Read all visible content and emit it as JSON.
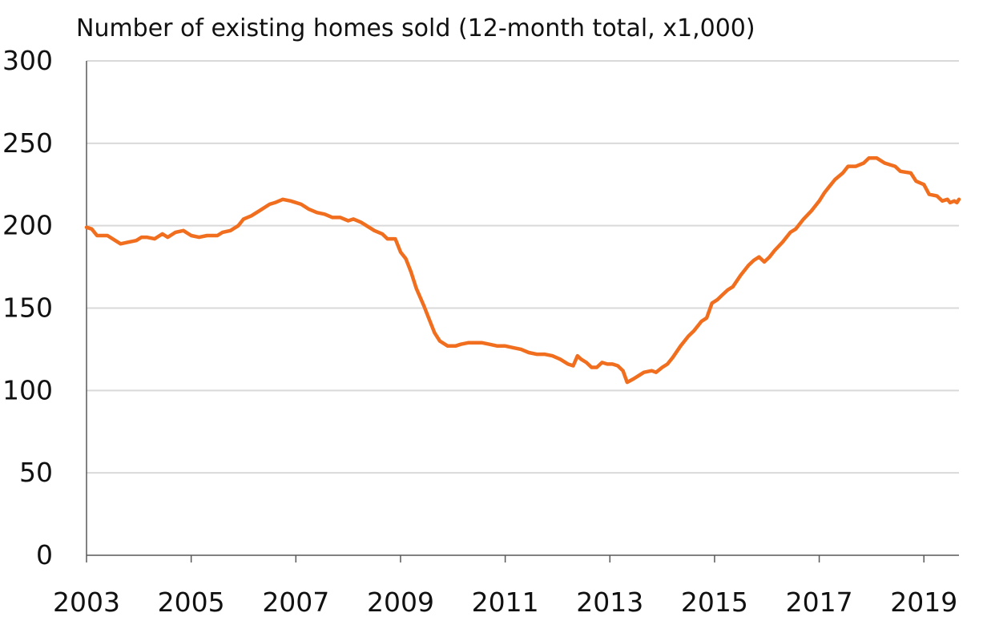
{
  "chart_data": {
    "type": "line",
    "title": "Number of existing homes sold (12-month total, x1,000)",
    "xlabel": "",
    "ylabel": "",
    "x_ticks": [
      "2003",
      "2005",
      "2007",
      "2009",
      "2011",
      "2013",
      "2015",
      "2017",
      "2019"
    ],
    "y_ticks": [
      "0",
      "50",
      "100",
      "150",
      "200",
      "250",
      "300"
    ],
    "xlim": [
      2003.0,
      2019.67
    ],
    "ylim": [
      0,
      300
    ],
    "grid": true,
    "color": "#f06e1e",
    "series": [
      {
        "name": "",
        "points": [
          [
            2003.0,
            199
          ],
          [
            2003.1,
            198
          ],
          [
            2003.2,
            194
          ],
          [
            2003.4,
            194
          ],
          [
            2003.55,
            191
          ],
          [
            2003.65,
            189
          ],
          [
            2003.8,
            190
          ],
          [
            2003.95,
            191
          ],
          [
            2004.05,
            193
          ],
          [
            2004.15,
            193
          ],
          [
            2004.3,
            192
          ],
          [
            2004.45,
            195
          ],
          [
            2004.55,
            193
          ],
          [
            2004.7,
            196
          ],
          [
            2004.85,
            197
          ],
          [
            2005.0,
            194
          ],
          [
            2005.15,
            193
          ],
          [
            2005.3,
            194
          ],
          [
            2005.5,
            194
          ],
          [
            2005.6,
            196
          ],
          [
            2005.75,
            197
          ],
          [
            2005.9,
            200
          ],
          [
            2006.0,
            204
          ],
          [
            2006.15,
            206
          ],
          [
            2006.3,
            209
          ],
          [
            2006.5,
            213
          ],
          [
            2006.6,
            214
          ],
          [
            2006.75,
            216
          ],
          [
            2006.9,
            215
          ],
          [
            2007.1,
            213
          ],
          [
            2007.25,
            210
          ],
          [
            2007.4,
            208
          ],
          [
            2007.55,
            207
          ],
          [
            2007.7,
            205
          ],
          [
            2007.85,
            205
          ],
          [
            2008.0,
            203
          ],
          [
            2008.1,
            204
          ],
          [
            2008.25,
            202
          ],
          [
            2008.35,
            200
          ],
          [
            2008.5,
            197
          ],
          [
            2008.65,
            195
          ],
          [
            2008.75,
            192
          ],
          [
            2008.9,
            192
          ],
          [
            2009.0,
            184
          ],
          [
            2009.1,
            180
          ],
          [
            2009.2,
            172
          ],
          [
            2009.3,
            162
          ],
          [
            2009.45,
            151
          ],
          [
            2009.55,
            143
          ],
          [
            2009.65,
            135
          ],
          [
            2009.75,
            130
          ],
          [
            2009.9,
            127
          ],
          [
            2010.05,
            127
          ],
          [
            2010.15,
            128
          ],
          [
            2010.3,
            129
          ],
          [
            2010.45,
            129
          ],
          [
            2010.55,
            129
          ],
          [
            2010.7,
            128
          ],
          [
            2010.85,
            127
          ],
          [
            2011.0,
            127
          ],
          [
            2011.15,
            126
          ],
          [
            2011.3,
            125
          ],
          [
            2011.45,
            123
          ],
          [
            2011.6,
            122
          ],
          [
            2011.75,
            122
          ],
          [
            2011.9,
            121
          ],
          [
            2012.05,
            119
          ],
          [
            2012.2,
            116
          ],
          [
            2012.3,
            115
          ],
          [
            2012.38,
            121
          ],
          [
            2012.45,
            119
          ],
          [
            2012.55,
            117
          ],
          [
            2012.65,
            114
          ],
          [
            2012.75,
            114
          ],
          [
            2012.85,
            117
          ],
          [
            2012.95,
            116
          ],
          [
            2013.05,
            116
          ],
          [
            2013.15,
            115
          ],
          [
            2013.25,
            112
          ],
          [
            2013.33,
            105
          ],
          [
            2013.45,
            107
          ],
          [
            2013.55,
            109
          ],
          [
            2013.65,
            111
          ],
          [
            2013.8,
            112
          ],
          [
            2013.88,
            111
          ],
          [
            2014.0,
            114
          ],
          [
            2014.1,
            116
          ],
          [
            2014.2,
            120
          ],
          [
            2014.35,
            127
          ],
          [
            2014.5,
            133
          ],
          [
            2014.6,
            136
          ],
          [
            2014.75,
            142
          ],
          [
            2014.85,
            144
          ],
          [
            2014.95,
            153
          ],
          [
            2015.05,
            155
          ],
          [
            2015.15,
            158
          ],
          [
            2015.25,
            161
          ],
          [
            2015.35,
            163
          ],
          [
            2015.5,
            170
          ],
          [
            2015.65,
            176
          ],
          [
            2015.75,
            179
          ],
          [
            2015.85,
            181
          ],
          [
            2015.95,
            178
          ],
          [
            2016.05,
            181
          ],
          [
            2016.15,
            185
          ],
          [
            2016.3,
            190
          ],
          [
            2016.45,
            196
          ],
          [
            2016.55,
            198
          ],
          [
            2016.7,
            204
          ],
          [
            2016.85,
            209
          ],
          [
            2017.0,
            215
          ],
          [
            2017.1,
            220
          ],
          [
            2017.2,
            224
          ],
          [
            2017.3,
            228
          ],
          [
            2017.45,
            232
          ],
          [
            2017.55,
            236
          ],
          [
            2017.7,
            236
          ],
          [
            2017.85,
            238
          ],
          [
            2017.95,
            241
          ],
          [
            2018.1,
            241
          ],
          [
            2018.25,
            238
          ],
          [
            2018.45,
            236
          ],
          [
            2018.55,
            233
          ],
          [
            2018.75,
            232
          ],
          [
            2018.85,
            227
          ],
          [
            2019.0,
            225
          ],
          [
            2019.1,
            219
          ],
          [
            2019.25,
            218
          ],
          [
            2019.35,
            215
          ],
          [
            2019.45,
            216
          ],
          [
            2019.5,
            214
          ],
          [
            2019.58,
            215
          ],
          [
            2019.63,
            214
          ],
          [
            2019.67,
            216
          ]
        ]
      }
    ]
  }
}
